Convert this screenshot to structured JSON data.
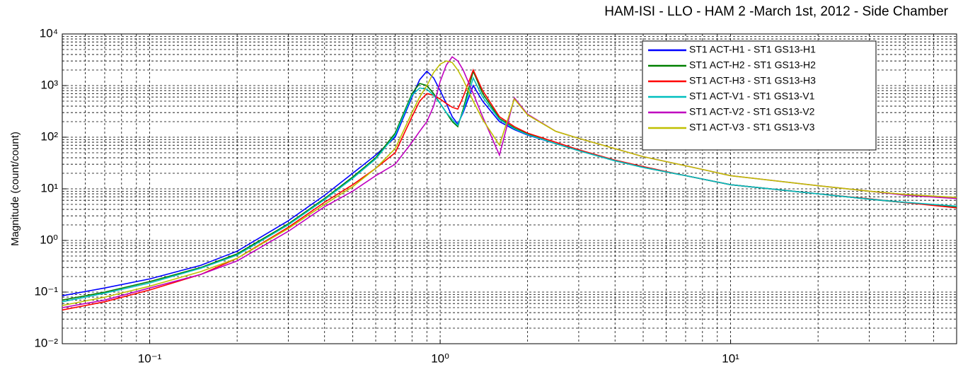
{
  "chart_data": {
    "type": "line",
    "title": "HAM-ISI - LLO - HAM 2 -March 1st, 2012 - Side Chamber",
    "y_label": "Magnitude (count/count)",
    "x_scale": "log",
    "y_scale": "log",
    "grid": true,
    "minor_grid": true,
    "legend": "upper right",
    "xlim": [
      0.05,
      60
    ],
    "ylim": [
      0.01,
      10000
    ],
    "xticks": [
      {
        "value": 0.1,
        "label": "10⁻¹"
      },
      {
        "value": 1,
        "label": "10⁰"
      },
      {
        "value": 10,
        "label": "10¹"
      }
    ],
    "yticks": [
      {
        "value": 0.01,
        "label": "10⁻²"
      },
      {
        "value": 0.1,
        "label": "10⁻¹"
      },
      {
        "value": 1,
        "label": "10⁰"
      },
      {
        "value": 10,
        "label": "10¹"
      },
      {
        "value": 100,
        "label": "10²"
      },
      {
        "value": 1000,
        "label": "10³"
      },
      {
        "value": 10000,
        "label": "10⁴"
      }
    ],
    "xminorticks": [
      0.05,
      0.06,
      0.07,
      0.08,
      0.09,
      0.2,
      0.3,
      0.4,
      0.5,
      0.6,
      0.7,
      0.8,
      0.9,
      2,
      3,
      4,
      5,
      6,
      7,
      8,
      9,
      20,
      30,
      40,
      50,
      60
    ],
    "yminorticks": [
      0.02,
      0.03,
      0.04,
      0.05,
      0.06,
      0.07,
      0.08,
      0.09,
      0.2,
      0.3,
      0.4,
      0.5,
      0.6,
      0.7,
      0.8,
      0.9,
      2,
      3,
      4,
      5,
      6,
      7,
      8,
      9,
      20,
      30,
      40,
      50,
      60,
      70,
      80,
      90,
      200,
      300,
      400,
      500,
      600,
      700,
      800,
      900,
      2000,
      3000,
      4000,
      5000,
      6000,
      7000,
      8000,
      9000
    ],
    "x": [
      0.05,
      0.07,
      0.1,
      0.15,
      0.2,
      0.3,
      0.4,
      0.5,
      0.6,
      0.7,
      0.8,
      0.85,
      0.9,
      0.95,
      1.0,
      1.05,
      1.1,
      1.15,
      1.2,
      1.3,
      1.4,
      1.6,
      1.8,
      2,
      2.5,
      3,
      4,
      5,
      7,
      10,
      20,
      30,
      40,
      60
    ],
    "series": [
      {
        "name": "ST1 ACT-H1 - ST1 GS13-H1",
        "color": "#0000ff",
        "values": [
          0.085,
          0.12,
          0.18,
          0.33,
          0.62,
          2.4,
          7.5,
          20,
          45,
          100,
          600,
          1300,
          1900,
          1400,
          800,
          450,
          250,
          180,
          300,
          1000,
          500,
          200,
          140,
          110,
          75,
          55,
          35,
          26,
          18,
          12,
          8,
          6.3,
          5.4,
          4.5
        ]
      },
      {
        "name": "ST1 ACT-H2 - ST1 GS13-H2",
        "color": "#008000",
        "values": [
          0.07,
          0.1,
          0.16,
          0.3,
          0.55,
          2.1,
          6.5,
          17,
          40,
          120,
          700,
          1100,
          1000,
          700,
          450,
          300,
          200,
          160,
          350,
          1900,
          700,
          230,
          150,
          115,
          75,
          55,
          35,
          26,
          18,
          12,
          8,
          6.3,
          5.4,
          4.5
        ]
      },
      {
        "name": "ST1 ACT-H3 - ST1 GS13-H3",
        "color": "#ff0000",
        "values": [
          0.045,
          0.065,
          0.11,
          0.22,
          0.45,
          1.8,
          5.5,
          12,
          25,
          50,
          250,
          500,
          700,
          650,
          550,
          450,
          380,
          350,
          600,
          2000,
          800,
          250,
          160,
          120,
          80,
          57,
          36,
          27,
          18,
          12,
          8,
          6.4,
          5.4,
          4.3
        ]
      },
      {
        "name": "ST1 ACT-V1 - ST1 GS13-V1",
        "color": "#00bfbf",
        "values": [
          0.065,
          0.095,
          0.15,
          0.29,
          0.52,
          2.0,
          6.2,
          16,
          38,
          110,
          650,
          900,
          850,
          650,
          450,
          300,
          220,
          170,
          320,
          1400,
          600,
          220,
          145,
          112,
          75,
          55,
          35,
          26,
          18,
          12,
          8,
          6.3,
          5.5,
          4.6
        ]
      },
      {
        "name": "ST1 ACT-V2 - ST1 GS13-V2",
        "color": "#bf00bf",
        "values": [
          0.05,
          0.07,
          0.12,
          0.22,
          0.4,
          1.5,
          4.5,
          9,
          18,
          30,
          80,
          130,
          200,
          400,
          1200,
          2500,
          3600,
          3000,
          2000,
          700,
          250,
          45,
          580,
          280,
          130,
          95,
          60,
          42,
          28,
          18,
          11.5,
          9,
          7.5,
          6.5
        ]
      },
      {
        "name": "ST1 ACT-V3 - ST1 GS13-V3",
        "color": "#bfbf00",
        "values": [
          0.055,
          0.08,
          0.13,
          0.25,
          0.45,
          1.7,
          5,
          11,
          25,
          60,
          300,
          600,
          1000,
          1800,
          2600,
          3000,
          2800,
          2000,
          1300,
          500,
          220,
          70,
          550,
          270,
          130,
          95,
          60,
          42,
          28,
          18,
          11.5,
          9,
          7.8,
          6.8
        ]
      }
    ]
  }
}
